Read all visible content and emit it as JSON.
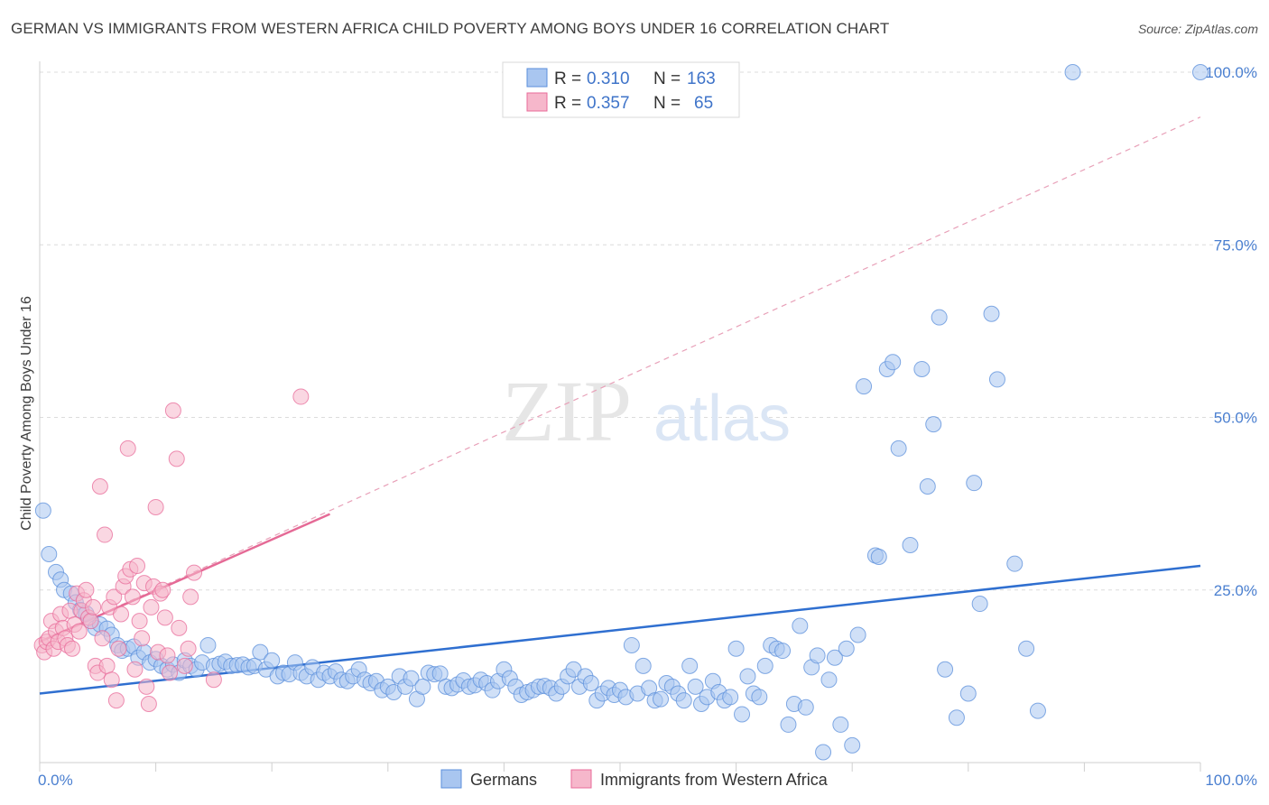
{
  "title": "GERMAN VS IMMIGRANTS FROM WESTERN AFRICA CHILD POVERTY AMONG BOYS UNDER 16 CORRELATION CHART",
  "source": "Source: ZipAtlas.com",
  "watermark": {
    "zip": "ZIP",
    "atlas": "atlas"
  },
  "colors": {
    "blue": "#5b8fdb",
    "blue_fill": "#a9c6f0",
    "pink": "#e86b9a",
    "pink_fill": "#f6b7cb",
    "tick_text": "#4a7fd0"
  },
  "legend": [
    {
      "r_label": "R =",
      "r_value": "0.310",
      "n_label": "N =",
      "n_value": "163"
    },
    {
      "r_label": "R =",
      "r_value": "0.357",
      "n_label": "N =",
      "n_value": "65"
    }
  ],
  "chart_data": {
    "type": "scatter",
    "title": "GERMAN VS IMMIGRANTS FROM WESTERN AFRICA CHILD POVERTY AMONG BOYS UNDER 16 CORRELATION CHART",
    "ylabel": "Child Poverty Among Boys Under 16",
    "xlabel": "",
    "xlim": [
      0,
      100
    ],
    "ylim": [
      0,
      100
    ],
    "x_tick_labels": [
      "0.0%",
      "100.0%"
    ],
    "y_tick_labels": [
      "25.0%",
      "50.0%",
      "75.0%",
      "100.0%"
    ],
    "y_ticks": [
      25,
      50,
      75,
      100
    ],
    "grid": true,
    "legend_position": "top-center",
    "series": [
      {
        "name": "Germans",
        "color": "#5b8fdb",
        "trend": {
          "x": [
            0,
            100
          ],
          "y": [
            10.0,
            28.5
          ]
        },
        "points": [
          [
            0.3,
            36.5
          ],
          [
            0.8,
            30.2
          ],
          [
            1.4,
            27.6
          ],
          [
            1.8,
            26.5
          ],
          [
            2.1,
            25.0
          ],
          [
            2.7,
            24.5
          ],
          [
            3.1,
            23.2
          ],
          [
            3.5,
            22.1
          ],
          [
            4.0,
            21.6
          ],
          [
            4.4,
            20.5
          ],
          [
            4.8,
            19.5
          ],
          [
            5.2,
            20.0
          ],
          [
            5.8,
            19.4
          ],
          [
            6.2,
            18.5
          ],
          [
            6.7,
            17.0
          ],
          [
            7.1,
            16.2
          ],
          [
            7.6,
            16.5
          ],
          [
            8.1,
            16.8
          ],
          [
            8.5,
            15.2
          ],
          [
            9.0,
            16.0
          ],
          [
            9.5,
            14.5
          ],
          [
            10.0,
            15.0
          ],
          [
            10.5,
            14.0
          ],
          [
            11.0,
            13.5
          ],
          [
            11.5,
            14.2
          ],
          [
            12.0,
            13.0
          ],
          [
            12.5,
            14.8
          ],
          [
            13.0,
            14.0
          ],
          [
            13.5,
            13.5
          ],
          [
            14.0,
            14.5
          ],
          [
            14.5,
            17.0
          ],
          [
            15.0,
            14.0
          ],
          [
            15.5,
            14.3
          ],
          [
            16.0,
            14.6
          ],
          [
            16.5,
            14.0
          ],
          [
            17.0,
            14.1
          ],
          [
            17.5,
            14.2
          ],
          [
            18.0,
            13.8
          ],
          [
            18.5,
            14.0
          ],
          [
            19.0,
            16.0
          ],
          [
            19.5,
            13.5
          ],
          [
            20.0,
            14.8
          ],
          [
            20.5,
            12.5
          ],
          [
            21.0,
            13.0
          ],
          [
            21.5,
            12.8
          ],
          [
            22.0,
            14.5
          ],
          [
            22.5,
            13.0
          ],
          [
            23.0,
            12.5
          ],
          [
            23.5,
            13.8
          ],
          [
            24.0,
            12.0
          ],
          [
            24.5,
            13.0
          ],
          [
            25.0,
            12.5
          ],
          [
            25.5,
            13.2
          ],
          [
            26.0,
            12.0
          ],
          [
            26.5,
            11.8
          ],
          [
            27.0,
            12.5
          ],
          [
            27.5,
            13.5
          ],
          [
            28.0,
            12.0
          ],
          [
            28.5,
            11.5
          ],
          [
            29.0,
            11.8
          ],
          [
            29.5,
            10.5
          ],
          [
            30.0,
            11.0
          ],
          [
            30.5,
            10.2
          ],
          [
            31.0,
            12.5
          ],
          [
            31.5,
            11.0
          ],
          [
            32.0,
            12.2
          ],
          [
            32.5,
            9.2
          ],
          [
            33.0,
            11.0
          ],
          [
            33.5,
            13.0
          ],
          [
            34.0,
            12.8
          ],
          [
            34.5,
            12.9
          ],
          [
            35.0,
            11.0
          ],
          [
            35.5,
            10.8
          ],
          [
            36.0,
            11.3
          ],
          [
            36.5,
            11.9
          ],
          [
            37.0,
            11.0
          ],
          [
            37.5,
            11.2
          ],
          [
            38.0,
            12.0
          ],
          [
            38.5,
            11.5
          ],
          [
            39.0,
            10.5
          ],
          [
            39.5,
            11.8
          ],
          [
            40.0,
            13.5
          ],
          [
            40.5,
            12.2
          ],
          [
            41.0,
            11.0
          ],
          [
            41.5,
            9.8
          ],
          [
            42.0,
            10.2
          ],
          [
            42.5,
            10.5
          ],
          [
            43.0,
            11.0
          ],
          [
            43.5,
            11.1
          ],
          [
            44.0,
            10.8
          ],
          [
            44.5,
            10.0
          ],
          [
            45.0,
            11.0
          ],
          [
            45.5,
            12.5
          ],
          [
            46.0,
            13.5
          ],
          [
            46.5,
            11.0
          ],
          [
            47.0,
            12.5
          ],
          [
            47.5,
            11.5
          ],
          [
            48.0,
            9.0
          ],
          [
            48.5,
            10.0
          ],
          [
            49.0,
            10.8
          ],
          [
            49.5,
            9.8
          ],
          [
            50.0,
            10.5
          ],
          [
            50.5,
            9.5
          ],
          [
            51.0,
            17.0
          ],
          [
            51.5,
            10.0
          ],
          [
            52.0,
            14.0
          ],
          [
            52.5,
            10.8
          ],
          [
            53.0,
            9.0
          ],
          [
            53.5,
            9.2
          ],
          [
            54.0,
            11.5
          ],
          [
            54.5,
            11.0
          ],
          [
            55.0,
            10.0
          ],
          [
            55.5,
            9.0
          ],
          [
            56.0,
            14.0
          ],
          [
            56.5,
            11.0
          ],
          [
            57.0,
            8.5
          ],
          [
            57.5,
            9.5
          ],
          [
            58.0,
            11.8
          ],
          [
            58.5,
            10.2
          ],
          [
            59.0,
            9.0
          ],
          [
            59.5,
            9.5
          ],
          [
            60.0,
            16.5
          ],
          [
            60.5,
            7.0
          ],
          [
            61.0,
            12.5
          ],
          [
            61.5,
            10.0
          ],
          [
            62.0,
            9.5
          ],
          [
            62.5,
            14.0
          ],
          [
            63.0,
            17.0
          ],
          [
            63.5,
            16.5
          ],
          [
            64.0,
            16.2
          ],
          [
            64.5,
            5.5
          ],
          [
            65.0,
            8.5
          ],
          [
            65.5,
            19.8
          ],
          [
            66.0,
            8.0
          ],
          [
            66.5,
            13.8
          ],
          [
            67.0,
            15.5
          ],
          [
            67.5,
            1.5
          ],
          [
            68.0,
            12.0
          ],
          [
            68.5,
            15.2
          ],
          [
            69.0,
            5.5
          ],
          [
            69.5,
            16.5
          ],
          [
            70.0,
            2.5
          ],
          [
            70.5,
            18.5
          ],
          [
            71.0,
            54.5
          ],
          [
            72.0,
            30.0
          ],
          [
            72.3,
            29.8
          ],
          [
            73.0,
            57.0
          ],
          [
            73.5,
            58.0
          ],
          [
            74.0,
            45.5
          ],
          [
            75.0,
            31.5
          ],
          [
            76.0,
            57.0
          ],
          [
            76.5,
            40.0
          ],
          [
            77.0,
            49.0
          ],
          [
            77.5,
            64.5
          ],
          [
            78.0,
            13.5
          ],
          [
            79.0,
            6.5
          ],
          [
            80.0,
            10.0
          ],
          [
            80.5,
            40.5
          ],
          [
            81.0,
            23.0
          ],
          [
            82.0,
            65.0
          ],
          [
            82.5,
            55.5
          ],
          [
            84.0,
            28.8
          ],
          [
            85.0,
            16.5
          ],
          [
            86.0,
            7.5
          ],
          [
            89.0,
            100.0
          ],
          [
            100.0,
            100.0
          ]
        ]
      },
      {
        "name": "Immigrants from Western Africa",
        "color": "#e86b9a",
        "trend": {
          "x": [
            0,
            25
          ],
          "y": [
            17.5,
            36.0
          ]
        },
        "trend_extended": {
          "x": [
            0,
            100
          ],
          "y": [
            17.5,
            93.5
          ]
        },
        "points": [
          [
            0.2,
            17.0
          ],
          [
            0.4,
            16.0
          ],
          [
            0.6,
            17.5
          ],
          [
            0.8,
            18.0
          ],
          [
            1.0,
            20.5
          ],
          [
            1.2,
            16.5
          ],
          [
            1.4,
            19.0
          ],
          [
            1.6,
            17.5
          ],
          [
            1.8,
            21.5
          ],
          [
            2.0,
            19.5
          ],
          [
            2.2,
            18.0
          ],
          [
            2.4,
            17.0
          ],
          [
            2.6,
            22.0
          ],
          [
            2.8,
            16.5
          ],
          [
            3.0,
            20.0
          ],
          [
            3.2,
            24.5
          ],
          [
            3.4,
            19.0
          ],
          [
            3.6,
            22.0
          ],
          [
            3.8,
            23.5
          ],
          [
            4.0,
            25.0
          ],
          [
            4.2,
            21.0
          ],
          [
            4.4,
            20.5
          ],
          [
            4.6,
            22.5
          ],
          [
            4.8,
            14.0
          ],
          [
            5.0,
            13.0
          ],
          [
            5.2,
            40.0
          ],
          [
            5.4,
            18.0
          ],
          [
            5.6,
            33.0
          ],
          [
            5.8,
            14.0
          ],
          [
            6.0,
            22.5
          ],
          [
            6.2,
            12.0
          ],
          [
            6.4,
            24.0
          ],
          [
            6.6,
            9.0
          ],
          [
            6.8,
            16.5
          ],
          [
            7.0,
            21.5
          ],
          [
            7.2,
            25.5
          ],
          [
            7.4,
            27.0
          ],
          [
            7.6,
            45.5
          ],
          [
            7.8,
            28.0
          ],
          [
            8.0,
            24.0
          ],
          [
            8.2,
            13.5
          ],
          [
            8.4,
            28.5
          ],
          [
            8.6,
            20.5
          ],
          [
            8.8,
            18.0
          ],
          [
            9.0,
            26.0
          ],
          [
            9.2,
            11.0
          ],
          [
            9.4,
            8.5
          ],
          [
            9.6,
            22.5
          ],
          [
            9.8,
            25.5
          ],
          [
            10.0,
            37.0
          ],
          [
            10.2,
            16.0
          ],
          [
            10.4,
            24.5
          ],
          [
            10.6,
            25.0
          ],
          [
            10.8,
            21.0
          ],
          [
            11.0,
            15.5
          ],
          [
            11.2,
            13.0
          ],
          [
            11.5,
            51.0
          ],
          [
            11.8,
            44.0
          ],
          [
            12.0,
            19.5
          ],
          [
            12.5,
            14.0
          ],
          [
            12.8,
            16.5
          ],
          [
            13.0,
            24.0
          ],
          [
            13.3,
            27.5
          ],
          [
            15.0,
            12.0
          ],
          [
            22.5,
            53.0
          ]
        ]
      }
    ]
  },
  "bottom_legend": [
    {
      "label": "Germans"
    },
    {
      "label": "Immigrants from Western Africa"
    }
  ]
}
